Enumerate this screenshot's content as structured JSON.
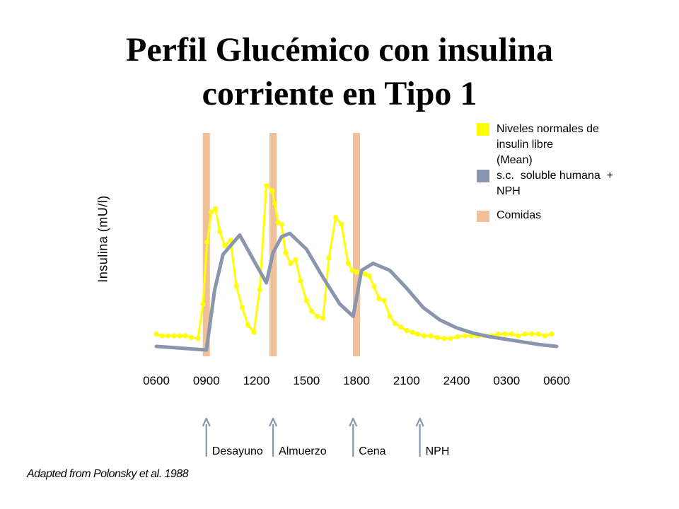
{
  "chart_data": {
    "type": "line",
    "title": "Perfil Glucémico con insulina corriente en Tipo 1",
    "title_lines": [
      "Perfil Glucémico con insulina",
      "corriente en Tipo 1"
    ],
    "ylabel": "Insulina (mU/l)",
    "xlabel": "",
    "xlim": [
      0,
      24
    ],
    "x_ticks": [
      {
        "x": 0,
        "label": "0600"
      },
      {
        "x": 3,
        "label": "0900"
      },
      {
        "x": 6,
        "label": "1200"
      },
      {
        "x": 9,
        "label": "1500"
      },
      {
        "x": 12,
        "label": "1800"
      },
      {
        "x": 15,
        "label": "2100"
      },
      {
        "x": 18,
        "label": "2400"
      },
      {
        "x": 21,
        "label": "0300"
      },
      {
        "x": 24,
        "label": "0600"
      }
    ],
    "ylim": [
      0,
      100
    ],
    "y_ticks_shown": false,
    "grid": false,
    "legend_position": "top-right",
    "meals": [
      {
        "x": 3.0,
        "label": "Desayuno"
      },
      {
        "x": 7.0,
        "label": "Almuerzo"
      },
      {
        "x": 12.0,
        "label": "Cena"
      }
    ],
    "injections": [
      {
        "x": 3.0,
        "label": "Desayuno"
      },
      {
        "x": 7.0,
        "label": "Almuerzo"
      },
      {
        "x": 11.8,
        "label": "Cena"
      },
      {
        "x": 15.8,
        "label": "NPH"
      }
    ],
    "series": [
      {
        "name": "Niveles normales de insulin libre (Mean)",
        "color": "#ffff00",
        "marker": "circle",
        "x": [
          0,
          0.35,
          0.7,
          1.05,
          1.4,
          1.75,
          2.1,
          2.5,
          2.8,
          3.05,
          3.3,
          3.55,
          3.8,
          4.1,
          4.45,
          4.8,
          5.15,
          5.5,
          5.85,
          6.2,
          6.6,
          6.95,
          7.1,
          7.3,
          7.5,
          7.75,
          8.05,
          8.35,
          8.65,
          9.0,
          9.3,
          9.65,
          10.0,
          10.35,
          10.75,
          11.1,
          11.5,
          11.75,
          12.0,
          12.25,
          12.5,
          12.75,
          13.05,
          13.35,
          13.65,
          14.0,
          14.3,
          14.65,
          15.0,
          15.35,
          15.65,
          16.05,
          16.45,
          16.85,
          17.25,
          17.65,
          18.05,
          18.5,
          18.9,
          19.3,
          19.7,
          20.1,
          20.5,
          20.9,
          21.3,
          21.7,
          22.1,
          22.5,
          22.9,
          23.3,
          23.7
        ],
        "values": [
          3,
          2,
          2,
          2,
          2,
          2,
          1,
          0.5,
          20,
          55,
          72,
          74,
          61,
          53,
          56,
          30,
          18,
          8,
          4,
          28,
          87,
          84,
          77,
          66,
          65,
          49,
          43,
          45,
          33,
          22,
          16,
          13,
          12,
          46,
          69,
          65,
          43,
          39,
          38,
          38,
          37,
          36,
          30,
          23,
          22,
          13,
          9,
          7,
          5,
          4,
          3,
          2,
          2,
          1,
          0.5,
          0.5,
          1.5,
          2,
          2,
          2,
          2,
          2,
          3,
          3,
          3,
          2,
          3,
          3,
          3,
          2,
          3
        ]
      },
      {
        "name": "s.c. soluble humana + NPH",
        "color": "#8a96ad",
        "marker": "none",
        "x": [
          0,
          3.0,
          3.5,
          4.0,
          5.0,
          6.0,
          6.6,
          7.0,
          7.5,
          8.0,
          9.0,
          10.0,
          11.0,
          11.8,
          12.3,
          13.0,
          14.0,
          15.0,
          16.0,
          17.0,
          18.0,
          19.0,
          20.0,
          21.0,
          22.0,
          23.0,
          24.0
        ],
        "values": [
          -4,
          -6,
          28,
          48,
          59,
          42,
          32,
          49,
          58,
          60,
          51,
          35,
          20,
          13,
          39,
          43,
          39,
          29,
          18,
          11,
          6.5,
          3.5,
          1.5,
          0,
          -1.5,
          -3,
          -4
        ]
      }
    ]
  },
  "legend": [
    {
      "label": "Niveles normales de insulin libre (Mean)",
      "label_lines": [
        "Niveles normales de",
        "insulin libre",
        "(Mean)"
      ],
      "color": "#ffff00"
    },
    {
      "label": "s.c. soluble humana + NPH",
      "label_lines": [
        "s.c.  soluble humana  +",
        "NPH"
      ],
      "color": "#8a96ad"
    },
    {
      "label": "Comidas",
      "label_lines": [
        "Comidas"
      ],
      "color": "#f0c09a"
    }
  ],
  "meal_color": "#f0c09a",
  "arrow_color": "#8a96ad",
  "source": "Adapted from Polonsky et al. 1988"
}
